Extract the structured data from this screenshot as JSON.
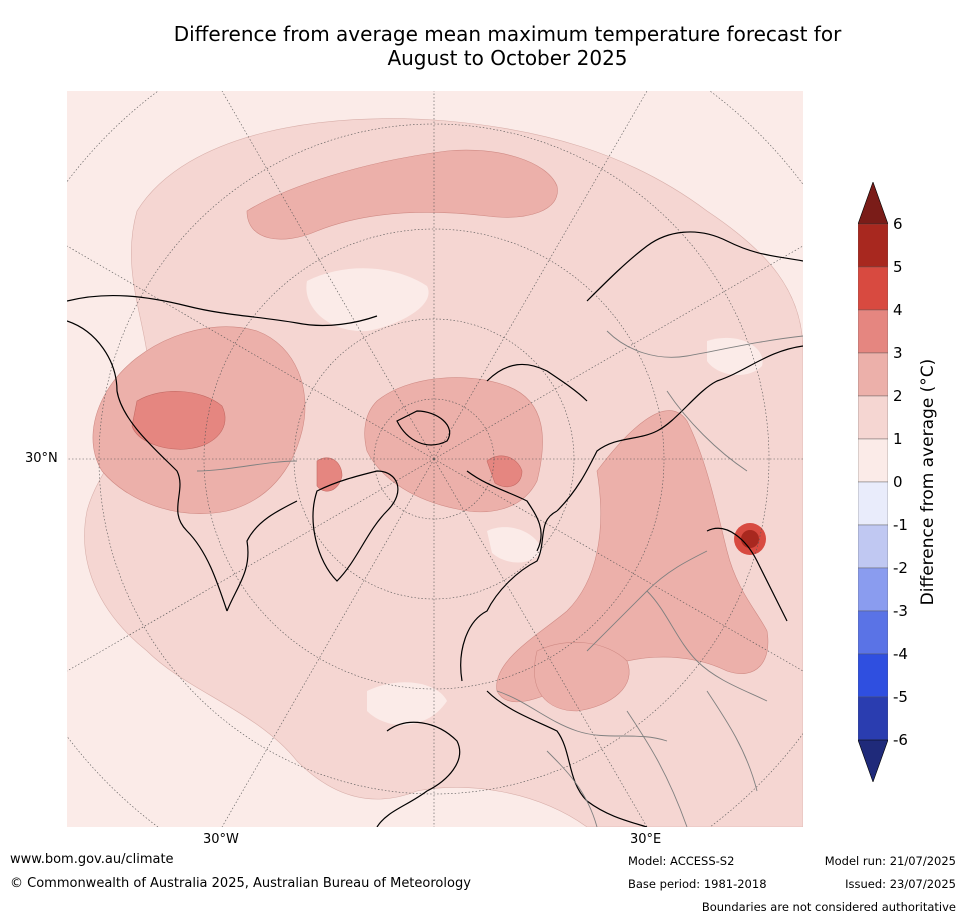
{
  "title": {
    "line1": "Difference from average mean maximum temperature forecast for",
    "line2": "August to October 2025"
  },
  "map": {
    "projection": "north-polar-stereographic",
    "lat_label": "30°N",
    "lon_labels": {
      "west": "30°W",
      "east": "30°E"
    },
    "fill_colors": {
      "lt1": "#fbebe8",
      "1to2": "#f5d6d2",
      "2to3": "#ecb0aa",
      "3to4": "#e58680",
      "4to5": "#d84a40",
      "5to6": "#a8281f",
      "coast": "#000000",
      "borders": "#808080"
    }
  },
  "colorbar": {
    "label": "Difference from average ($^\\circ$C)",
    "label_display": "Difference from average (°C)",
    "ticks": [
      "6",
      "5",
      "4",
      "3",
      "2",
      "1",
      "0",
      "-1",
      "-2",
      "-3",
      "-4",
      "-5",
      "-6"
    ],
    "colors": [
      "#a8281f",
      "#d84a40",
      "#e58680",
      "#ecb0aa",
      "#f5d6d2",
      "#fbebe8",
      "#e9ecfb",
      "#c0c8f2",
      "#8a9cef",
      "#5a73e6",
      "#2f4fe0",
      "#2a3db0"
    ],
    "over_color": "#7a1c18",
    "under_color": "#1f2a7a"
  },
  "footer": {
    "website": "www.bom.gov.au/climate",
    "copyright": "© Commonwealth of Australia 2025, Australian Bureau of Meteorology",
    "model": "Model: ACCESS-S2",
    "base_period": "Base period: 1981-2018",
    "model_run": "Model run: 21/07/2025",
    "issued": "Issued: 23/07/2025",
    "disclaimer": "Boundaries are not considered authoritative"
  }
}
